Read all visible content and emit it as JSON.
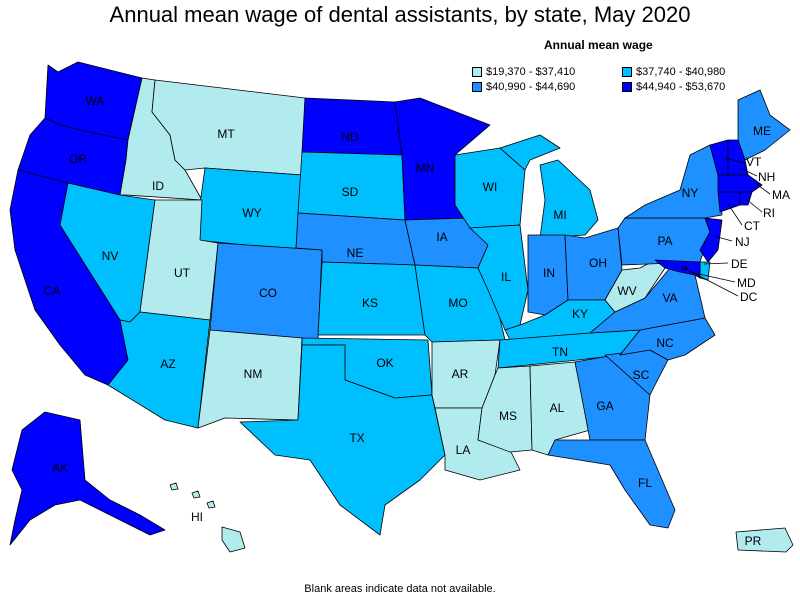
{
  "title": "Annual mean wage of dental assistants, by state, May 2020",
  "legend": {
    "title": "Annual mean wage",
    "bins": [
      {
        "label": "$19,370 - $37,410",
        "color": "#b2ebee"
      },
      {
        "label": "$37,740 - $40,980",
        "color": "#00bfff"
      },
      {
        "label": "$40,990 - $44,690",
        "color": "#1e90ff"
      },
      {
        "label": "$44,940 - $53,670",
        "color": "#0000ff"
      }
    ]
  },
  "note": "Blank areas indicate data not available.",
  "states": {
    "WA": {
      "label": "WA",
      "bin": 3
    },
    "OR": {
      "label": "OR",
      "bin": 3
    },
    "CA": {
      "label": "CA",
      "bin": 3
    },
    "ID": {
      "label": "ID",
      "bin": 0
    },
    "NV": {
      "label": "NV",
      "bin": 1
    },
    "MT": {
      "label": "MT",
      "bin": 0
    },
    "WY": {
      "label": "WY",
      "bin": 1
    },
    "UT": {
      "label": "UT",
      "bin": 0
    },
    "AZ": {
      "label": "AZ",
      "bin": 1
    },
    "CO": {
      "label": "CO",
      "bin": 2
    },
    "NM": {
      "label": "NM",
      "bin": 0
    },
    "ND": {
      "label": "ND",
      "bin": 3
    },
    "SD": {
      "label": "SD",
      "bin": 1
    },
    "NE": {
      "label": "NE",
      "bin": 2
    },
    "KS": {
      "label": "KS",
      "bin": 1
    },
    "OK": {
      "label": "OK",
      "bin": 1
    },
    "TX": {
      "label": "TX",
      "bin": 1
    },
    "MN": {
      "label": "MN",
      "bin": 3
    },
    "IA": {
      "label": "IA",
      "bin": 2
    },
    "MO": {
      "label": "MO",
      "bin": 1
    },
    "AR": {
      "label": "AR",
      "bin": 0
    },
    "LA": {
      "label": "LA",
      "bin": 0
    },
    "WI": {
      "label": "WI",
      "bin": 1
    },
    "IL": {
      "label": "IL",
      "bin": 1
    },
    "MI": {
      "label": "MI",
      "bin": 1
    },
    "IN": {
      "label": "IN",
      "bin": 2
    },
    "OH": {
      "label": "OH",
      "bin": 2
    },
    "KY": {
      "label": "KY",
      "bin": 1
    },
    "TN": {
      "label": "TN",
      "bin": 1
    },
    "MS": {
      "label": "MS",
      "bin": 0
    },
    "AL": {
      "label": "AL",
      "bin": 0
    },
    "GA": {
      "label": "GA",
      "bin": 2
    },
    "FL": {
      "label": "FL",
      "bin": 2
    },
    "SC": {
      "label": "SC",
      "bin": 2
    },
    "NC": {
      "label": "NC",
      "bin": 2
    },
    "VA": {
      "label": "VA",
      "bin": 2
    },
    "WV": {
      "label": "WV",
      "bin": 0
    },
    "PA": {
      "label": "PA",
      "bin": 2
    },
    "NY": {
      "label": "NY",
      "bin": 2
    },
    "ME": {
      "label": "ME",
      "bin": 2
    },
    "VT": {
      "label": "VT",
      "bin": 3
    },
    "NH": {
      "label": "NH",
      "bin": 3
    },
    "MA": {
      "label": "MA",
      "bin": 3
    },
    "RI": {
      "label": "RI",
      "bin": 3
    },
    "CT": {
      "label": "CT",
      "bin": 3
    },
    "NJ": {
      "label": "NJ",
      "bin": 3
    },
    "DE": {
      "label": "DE",
      "bin": 1
    },
    "MD": {
      "label": "MD",
      "bin": 3
    },
    "DC": {
      "label": "DC",
      "bin": 3
    },
    "AK": {
      "label": "AK",
      "bin": 3
    },
    "HI": {
      "label": "HI",
      "bin": 0
    },
    "PR": {
      "label": "PR",
      "bin": 0
    }
  }
}
